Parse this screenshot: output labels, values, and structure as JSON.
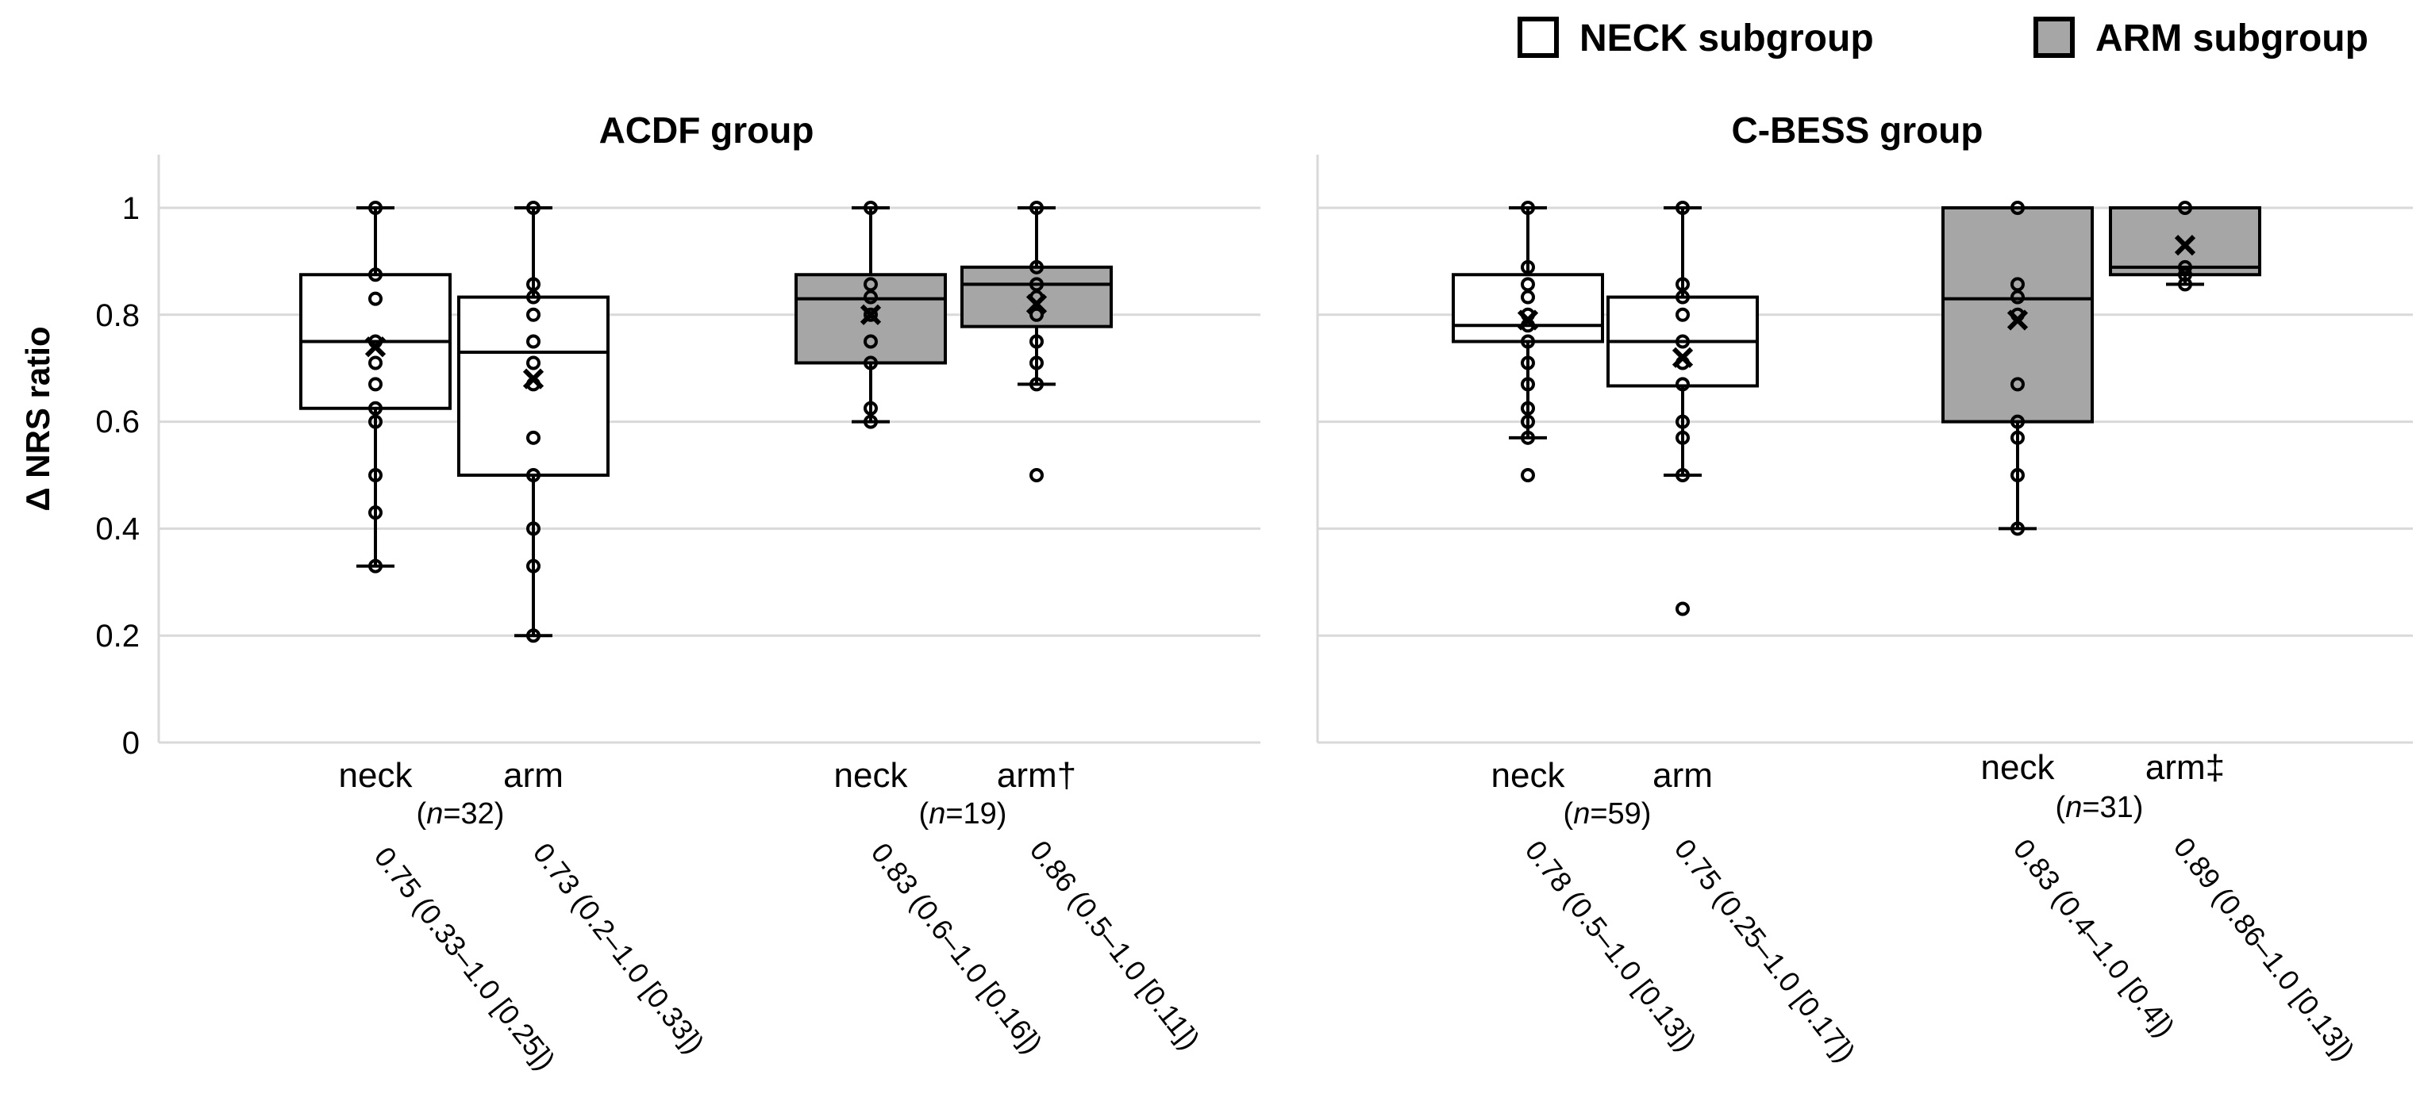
{
  "legend": {
    "neck_label": "NECK subgroup",
    "arm_label": "ARM subgroup",
    "neck_color": "#ffffff",
    "arm_color": "#a6a6a6"
  },
  "yaxis": {
    "label": "Δ NRS ratio",
    "ticks": [
      "0",
      "0.2",
      "0.4",
      "0.6",
      "0.8",
      "1"
    ]
  },
  "chart_data": [
    {
      "type": "box",
      "title": "ACDF group",
      "ylabel": "Δ NRS ratio",
      "ylim": [
        0,
        1.1
      ],
      "subgroups": [
        {
          "subgroup": "NECK subgroup",
          "n_label": "n",
          "n_value": "=32)",
          "n_open": "(",
          "boxes": [
            {
              "label": "neck",
              "min": 0.33,
              "q1": 0.625,
              "median": 0.75,
              "q3": 0.875,
              "max": 1.0,
              "mean": 0.74,
              "points": [
                1.0,
                0.875,
                0.83,
                0.75,
                0.71,
                0.67,
                0.625,
                0.6,
                0.5,
                0.43,
                0.33
              ],
              "summary": "0.75 (0.33–1.0 [0.25])"
            },
            {
              "label": "arm",
              "min": 0.2,
              "q1": 0.5,
              "median": 0.73,
              "q3": 0.833,
              "max": 1.0,
              "mean": 0.68,
              "points": [
                1.0,
                0.857,
                0.833,
                0.8,
                0.75,
                0.71,
                0.67,
                0.57,
                0.5,
                0.4,
                0.33,
                0.2
              ],
              "summary": "0.73 (0.2–1.0 [0.33])"
            }
          ]
        },
        {
          "subgroup": "ARM subgroup",
          "n_label": "n",
          "n_value": "=19)",
          "n_open": "(",
          "boxes": [
            {
              "label": "neck",
              "min": 0.6,
              "q1": 0.71,
              "median": 0.83,
              "q3": 0.875,
              "max": 1.0,
              "mean": 0.8,
              "points": [
                1.0,
                0.857,
                0.833,
                0.8,
                0.75,
                0.71,
                0.625,
                0.6
              ],
              "summary": "0.83 (0.6–1.0 [0.16])"
            },
            {
              "label": "arm†",
              "min": 0.67,
              "q1": 0.778,
              "median": 0.857,
              "q3": 0.889,
              "max": 1.0,
              "mean": 0.82,
              "outliers": [
                0.5
              ],
              "points": [
                1.0,
                0.889,
                0.857,
                0.833,
                0.8,
                0.75,
                0.71,
                0.67
              ],
              "summary": "0.86 (0.5–1.0 [0.11])"
            }
          ]
        }
      ]
    },
    {
      "type": "box",
      "title": "C-BESS group",
      "ylabel": "Δ NRS ratio",
      "ylim": [
        0,
        1.1
      ],
      "subgroups": [
        {
          "subgroup": "NECK subgroup",
          "n_label": "n",
          "n_value": "=59)",
          "n_open": "(",
          "boxes": [
            {
              "label": "neck",
              "min": 0.57,
              "q1": 0.75,
              "median": 0.78,
              "q3": 0.875,
              "max": 1.0,
              "mean": 0.79,
              "outliers": [
                0.5
              ],
              "points": [
                1.0,
                0.889,
                0.857,
                0.833,
                0.8,
                0.78,
                0.75,
                0.71,
                0.67,
                0.625,
                0.6,
                0.57
              ],
              "summary": "0.78 (0.5–1.0 [0.13])"
            },
            {
              "label": "arm",
              "min": 0.5,
              "q1": 0.667,
              "median": 0.75,
              "q3": 0.833,
              "max": 1.0,
              "mean": 0.72,
              "outliers": [
                0.25
              ],
              "points": [
                1.0,
                0.857,
                0.833,
                0.8,
                0.75,
                0.71,
                0.67,
                0.6,
                0.57,
                0.5
              ],
              "summary": "0.75 (0.25–1.0 [0.17])"
            }
          ]
        },
        {
          "subgroup": "ARM subgroup",
          "n_label": "n",
          "n_value": "=31)",
          "n_open": "(",
          "boxes": [
            {
              "label": "neck",
              "min": 0.4,
              "q1": 0.6,
              "median": 0.83,
              "q3": 1.0,
              "max": 1.0,
              "mean": 0.79,
              "points": [
                1.0,
                0.857,
                0.833,
                0.8,
                0.67,
                0.6,
                0.57,
                0.5,
                0.4
              ],
              "summary": "0.83 (0.4–1.0 [0.4])"
            },
            {
              "label": "arm‡",
              "min": 0.857,
              "q1": 0.875,
              "median": 0.889,
              "q3": 1.0,
              "max": 1.0,
              "mean": 0.93,
              "points": [
                1.0,
                0.889,
                0.875,
                0.857
              ],
              "summary": "0.89 (0.86–1.0 [0.13])"
            }
          ]
        }
      ]
    }
  ]
}
